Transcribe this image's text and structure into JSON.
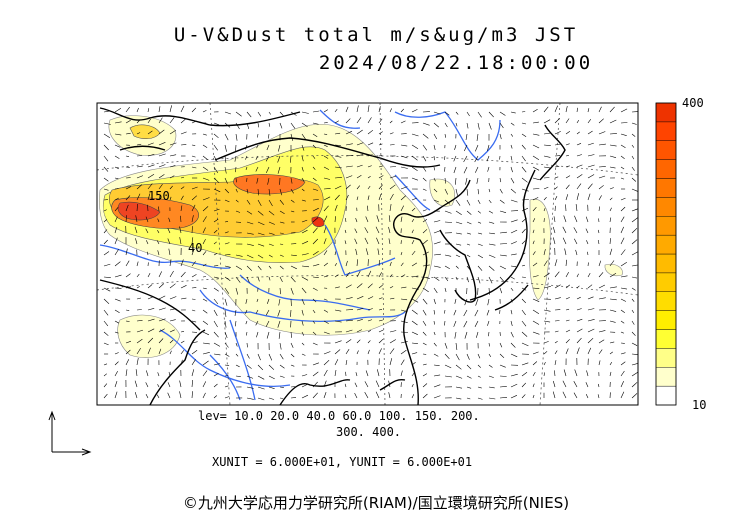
{
  "header": {
    "title": "U-V&Dust total m/s&ug/m3 JST",
    "datetime": "2024/08/22.18:00:00"
  },
  "map": {
    "type": "dust concentration with wind vectors",
    "region": "East Asia",
    "contour_labels": [
      "150",
      "40"
    ]
  },
  "colorbar": {
    "max_label": "400",
    "min_label": "10",
    "levels": [
      10,
      20,
      40,
      60,
      100,
      150,
      200,
      300,
      400
    ],
    "colors": [
      "#ffffff",
      "#ffffcc",
      "#ffff88",
      "#ffff33",
      "#ffee00",
      "#ffdd00",
      "#ffcc00",
      "#ffbb00",
      "#ffaa00",
      "#ff9900",
      "#ff8800",
      "#ff7700",
      "#ff6600",
      "#ff5500",
      "#ff4400",
      "#ee3300"
    ]
  },
  "footer": {
    "levels_line1": "lev= 10.0 20.0 40.0 60.0 100. 150. 200.",
    "levels_line2": "300. 400.",
    "units": "XUNIT = 6.000E+01, YUNIT = 6.000E+01",
    "copyright": "©九州大学応用力学研究所(RIAM)/国立環境研究所(NIES)"
  }
}
